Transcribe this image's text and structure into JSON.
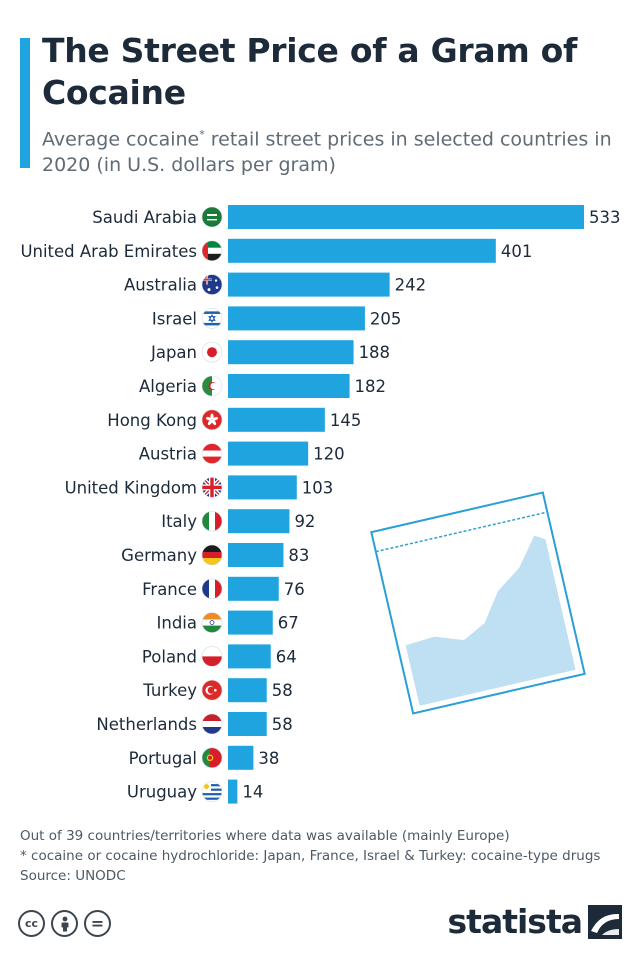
{
  "header": {
    "title": "The Street Price of a Gram of Cocaine",
    "subtitle_before": "Average cocaine",
    "subtitle_star": "*",
    "subtitle_after": " retail street prices in selected countries in 2020 (in U.S. dollars per gram)"
  },
  "chart_data": {
    "type": "bar",
    "orientation": "horizontal",
    "title": "The Street Price of a Gram of Cocaine",
    "subtitle": "Average cocaine* retail street prices in selected countries in 2020 (in U.S. dollars per gram)",
    "categories": [
      "Saudi Arabia",
      "United Arab Emirates",
      "Australia",
      "Israel",
      "Japan",
      "Algeria",
      "Hong Kong",
      "Austria",
      "United Kingdom",
      "Italy",
      "Germany",
      "France",
      "India",
      "Poland",
      "Turkey",
      "Netherlands",
      "Portugal",
      "Uruguay"
    ],
    "values": [
      533,
      401,
      242,
      205,
      188,
      182,
      145,
      120,
      103,
      92,
      83,
      76,
      67,
      64,
      58,
      58,
      38,
      14
    ],
    "flags": [
      "saudi-arabia-flag-icon",
      "uae-flag-icon",
      "australia-flag-icon",
      "israel-flag-icon",
      "japan-flag-icon",
      "algeria-flag-icon",
      "hong-kong-flag-icon",
      "austria-flag-icon",
      "uk-flag-icon",
      "italy-flag-icon",
      "germany-flag-icon",
      "france-flag-icon",
      "india-flag-icon",
      "poland-flag-icon",
      "turkey-flag-icon",
      "netherlands-flag-icon",
      "portugal-flag-icon",
      "uruguay-flag-icon"
    ],
    "xlim": [
      0,
      533
    ],
    "bar_color": "#1fa4e0",
    "grid": false,
    "data_labels": true
  },
  "notes": {
    "line1": "Out of 39 countries/territories where data was available (mainly Europe)",
    "line2": "* cocaine or cocaine hydrochloride: Japan, France, Israel & Turkey: cocaine-type drugs",
    "source": "Source: UNODC"
  },
  "footer": {
    "license_icons": [
      "cc-icon",
      "attribution-icon",
      "no-derivatives-icon"
    ],
    "cc_text": "cc",
    "nd_text": "=",
    "brand": "statista"
  },
  "colors": {
    "accent": "#1fa4e0",
    "text": "#1c2a3a",
    "muted": "#5f6b76"
  }
}
